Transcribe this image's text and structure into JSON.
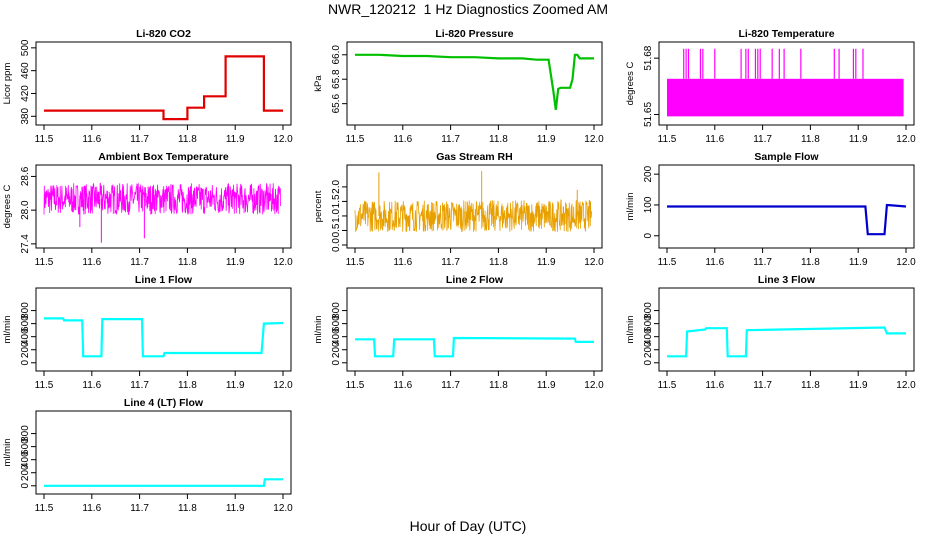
{
  "title": "NWR_120212  1 Hz Diagnostics Zoomed AM",
  "xlabel": "Hour of Day (UTC)",
  "chart_data": [
    {
      "type": "line",
      "title": "Li-820 CO2",
      "ylabel": "Licor ppm",
      "color": "#e00000",
      "xlim": [
        11.5,
        12.0
      ],
      "ylim": [
        370,
        505
      ],
      "xticks": [
        "11.5",
        "11.6",
        "11.7",
        "11.8",
        "11.9",
        "12.0"
      ],
      "yticks": [
        380,
        420,
        460,
        500
      ],
      "ytick_labels": [
        "380",
        "420",
        "460",
        "500"
      ],
      "series": [
        {
          "x": [
            11.5,
            11.75,
            11.75,
            11.8,
            11.8,
            11.835,
            11.835,
            11.88,
            11.88,
            11.96,
            11.96,
            12.0
          ],
          "y": [
            390,
            390,
            375,
            375,
            395,
            395,
            415,
            415,
            485,
            485,
            390,
            390
          ]
        }
      ]
    },
    {
      "type": "line",
      "title": "Li-820 Pressure",
      "ylabel": "kPa",
      "color": "#00c000",
      "xlim": [
        11.5,
        12.0
      ],
      "ylim": [
        65.45,
        66.08
      ],
      "xticks": [
        "11.5",
        "11.6",
        "11.7",
        "11.8",
        "11.9",
        "12.0"
      ],
      "yticks": [
        65.6,
        65.8,
        66.0
      ],
      "ytick_labels": [
        "65.6",
        "65.8",
        "66.0"
      ],
      "series": [
        {
          "x": [
            11.5,
            11.55,
            11.6,
            11.65,
            11.7,
            11.75,
            11.8,
            11.85,
            11.88,
            11.905,
            11.915,
            11.92,
            11.925,
            11.93,
            11.95,
            11.955,
            11.96,
            11.965,
            11.97,
            11.98,
            12.0
          ],
          "y": [
            66.0,
            66.0,
            65.99,
            65.99,
            65.98,
            65.98,
            65.97,
            65.97,
            65.96,
            65.96,
            65.7,
            65.55,
            65.72,
            65.73,
            65.73,
            65.8,
            66.0,
            66.0,
            65.97,
            65.97,
            65.97
          ]
        }
      ]
    },
    {
      "type": "area",
      "title": "Li-820 Temperature",
      "ylabel": "degrees C",
      "color": "#ff00ff",
      "xlim": [
        11.5,
        12.0
      ],
      "ylim": [
        51.646,
        51.687
      ],
      "xticks": [
        "11.5",
        "11.6",
        "11.7",
        "11.8",
        "11.9",
        "12.0"
      ],
      "yticks": [
        51.65,
        51.68
      ],
      "ytick_labels": [
        "51.65",
        "51.68"
      ],
      "band": {
        "low": 51.649,
        "high": 51.669
      },
      "spikes": [
        11.535,
        11.54,
        11.545,
        11.57,
        11.575,
        11.6,
        11.655,
        11.665,
        11.67,
        11.685,
        11.69,
        11.695,
        11.72,
        11.735,
        11.745,
        11.78,
        11.85,
        11.86,
        11.89,
        11.895,
        11.91
      ],
      "spike_top": 51.685
    },
    {
      "type": "line",
      "title": "Ambient Box Temperature",
      "ylabel": "degrees C",
      "color": "#ff00ff",
      "xlim": [
        11.5,
        12.0
      ],
      "ylim": [
        27.38,
        28.75
      ],
      "xticks": [
        "11.5",
        "11.6",
        "11.7",
        "11.8",
        "11.9",
        "12.0"
      ],
      "yticks": [
        27.4,
        28.0,
        28.6
      ],
      "ytick_labels": [
        "27.4",
        "28.0",
        "28.6"
      ],
      "noise": {
        "center": 28.2,
        "amp": 0.28,
        "dips": [
          [
            11.62,
            27.42
          ],
          [
            11.71,
            27.5
          ],
          [
            11.575,
            27.7
          ]
        ]
      }
    },
    {
      "type": "line",
      "title": "Gas Stream RH",
      "ylabel": "percent",
      "color": "#e8a000",
      "xlim": [
        11.5,
        12.0
      ],
      "ylim": [
        0.0,
        2.65
      ],
      "xticks": [
        "11.5",
        "11.6",
        "11.7",
        "11.8",
        "11.9",
        "12.0"
      ],
      "yticks": [
        0.0,
        0.5,
        1.0,
        1.5,
        2.0
      ],
      "ytick_labels": [
        "0.0",
        "0.5",
        "1.0",
        "1.5",
        "2.0"
      ],
      "noise": {
        "center": 1.0,
        "amp": 0.55,
        "peaks": [
          [
            11.55,
            2.5
          ],
          [
            11.765,
            2.55
          ],
          [
            11.965,
            1.9
          ]
        ]
      }
    },
    {
      "type": "line",
      "title": "Sample Flow",
      "ylabel": "ml/min",
      "color": "#0000cc",
      "xlim": [
        11.5,
        12.0
      ],
      "ylim": [
        -30,
        220
      ],
      "xticks": [
        "11.5",
        "11.6",
        "11.7",
        "11.8",
        "11.9",
        "12.0"
      ],
      "yticks": [
        0,
        100,
        200
      ],
      "ytick_labels": [
        "0",
        "100",
        "200"
      ],
      "series": [
        {
          "x": [
            11.5,
            11.915,
            11.92,
            11.955,
            11.96,
            12.0
          ],
          "y": [
            95,
            95,
            5,
            5,
            100,
            95
          ]
        }
      ]
    },
    {
      "type": "line",
      "title": "Line 1 Flow",
      "ylabel": "ml/min",
      "color": "#00ffff",
      "xlim": [
        11.5,
        12.0
      ],
      "ylim": [
        -80,
        1100
      ],
      "xticks": [
        "11.5",
        "11.6",
        "11.7",
        "11.8",
        "11.9",
        "12.0"
      ],
      "yticks": [
        0,
        200,
        400,
        600,
        800
      ],
      "ytick_labels": [
        "0",
        "200",
        "400",
        "600",
        "800"
      ],
      "series": [
        {
          "x": [
            11.5,
            11.54,
            11.542,
            11.58,
            11.582,
            11.62,
            11.622,
            11.705,
            11.707,
            11.75,
            11.752,
            11.955,
            11.96,
            12.0
          ],
          "y": [
            680,
            680,
            650,
            650,
            100,
            100,
            670,
            670,
            100,
            100,
            150,
            150,
            600,
            610
          ]
        }
      ]
    },
    {
      "type": "line",
      "title": "Line 2 Flow",
      "ylabel": "ml/min",
      "color": "#00ffff",
      "xlim": [
        11.5,
        12.0
      ],
      "ylim": [
        -80,
        1100
      ],
      "xticks": [
        "11.5",
        "11.6",
        "11.7",
        "11.8",
        "11.9",
        "12.0"
      ],
      "yticks": [
        0,
        200,
        400,
        600,
        800
      ],
      "ytick_labels": [
        "0",
        "200",
        "400",
        "600",
        "800"
      ],
      "series": [
        {
          "x": [
            11.5,
            11.54,
            11.542,
            11.58,
            11.582,
            11.665,
            11.667,
            11.705,
            11.707,
            11.96,
            11.962,
            12.0
          ],
          "y": [
            360,
            360,
            100,
            100,
            360,
            360,
            100,
            100,
            380,
            370,
            320,
            320
          ]
        }
      ]
    },
    {
      "type": "line",
      "title": "Line 3 Flow",
      "ylabel": "ml/min",
      "color": "#00ffff",
      "xlim": [
        11.5,
        12.0
      ],
      "ylim": [
        -80,
        1100
      ],
      "xticks": [
        "11.5",
        "11.6",
        "11.7",
        "11.8",
        "11.9",
        "12.0"
      ],
      "yticks": [
        0,
        200,
        400,
        600,
        800
      ],
      "ytick_labels": [
        "0",
        "200",
        "400",
        "600",
        "800"
      ],
      "series": [
        {
          "x": [
            11.5,
            11.54,
            11.542,
            11.58,
            11.582,
            11.625,
            11.627,
            11.665,
            11.667,
            11.955,
            11.96,
            12.0
          ],
          "y": [
            100,
            100,
            480,
            510,
            530,
            530,
            100,
            100,
            500,
            540,
            450,
            450
          ]
        }
      ]
    },
    {
      "type": "line",
      "title": "Line 4 (LT) Flow",
      "ylabel": "ml/min",
      "color": "#00ffff",
      "xlim": [
        11.5,
        12.0
      ],
      "ylim": [
        -80,
        1100
      ],
      "xticks": [
        "11.5",
        "11.6",
        "11.7",
        "11.8",
        "11.9",
        "12.0"
      ],
      "yticks": [
        0,
        200,
        400,
        600,
        800
      ],
      "ytick_labels": [
        "0",
        "200",
        "400",
        "600",
        "800"
      ],
      "series": [
        {
          "x": [
            11.5,
            11.96,
            11.962,
            12.0
          ],
          "y": [
            0,
            0,
            100,
            100
          ]
        }
      ]
    }
  ]
}
